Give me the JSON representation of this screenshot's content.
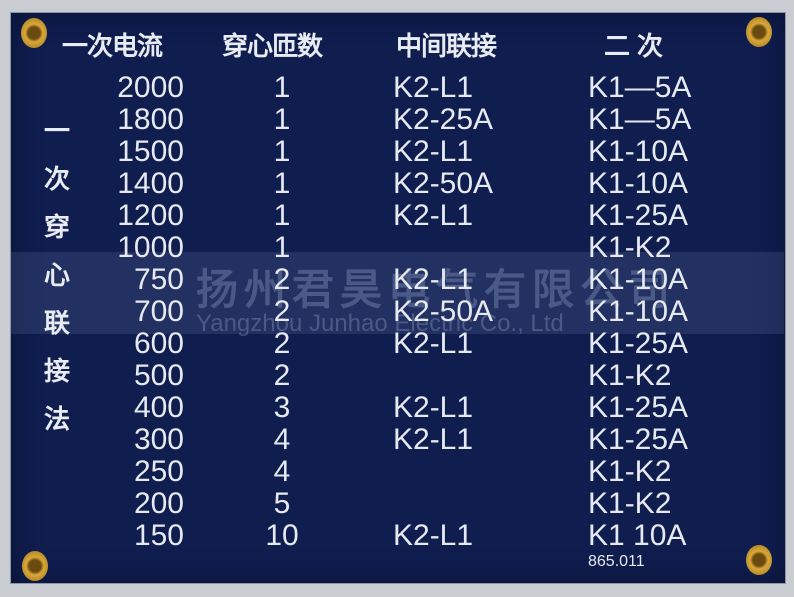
{
  "headers": [
    "一次电流",
    "穿心匝数",
    "中间联接",
    "二 次"
  ],
  "side_label": [
    "一",
    "次",
    "穿",
    "心",
    "联",
    "接",
    "法"
  ],
  "rows": [
    [
      "2000",
      "1",
      "K2-L1",
      "K1—5A"
    ],
    [
      "1800",
      "1",
      "K2-25A",
      "K1—5A"
    ],
    [
      "1500",
      "1",
      "K2-L1",
      "K1-10A"
    ],
    [
      "1400",
      "1",
      "K2-50A",
      "K1-10A"
    ],
    [
      "1200",
      "1",
      "K2-L1",
      "K1-25A"
    ],
    [
      "1000",
      "1",
      "",
      "K1-K2"
    ],
    [
      "750",
      "2",
      "K2-L1",
      "K1-10A"
    ],
    [
      "700",
      "2",
      "K2-50A",
      "K1-10A"
    ],
    [
      "600",
      "2",
      "K2-L1",
      "K1-25A"
    ],
    [
      "500",
      "2",
      "",
      "K1-K2"
    ],
    [
      "400",
      "3",
      "K2-L1",
      "K1-25A"
    ],
    [
      "300",
      "4",
      "K2-L1",
      "K1-25A"
    ],
    [
      "250",
      "4",
      "",
      "K1-K2"
    ],
    [
      "200",
      "5",
      "",
      "K1-K2"
    ],
    [
      "150",
      "10",
      "K2-L1",
      "K1  10A"
    ]
  ],
  "code": "865.011",
  "watermark": {
    "cn": "扬州君昊电气有限公司",
    "en": "Yangzhou Junhao Electric Co., Ltd"
  },
  "colors": {
    "plate": "#0f1d4f",
    "text": "#e6eaf0",
    "rivet": "#d8a83a"
  }
}
